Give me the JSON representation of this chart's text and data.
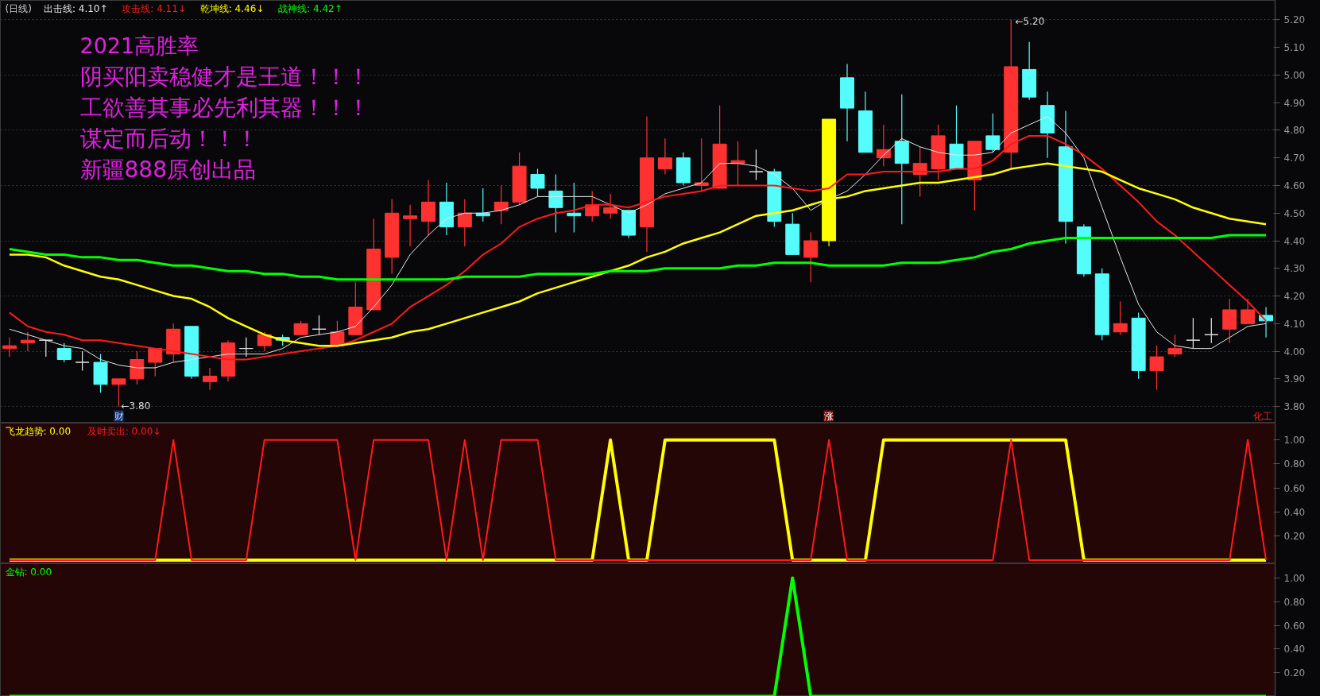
{
  "chart_data": [
    {
      "type": "candlestick",
      "title": "(日线)",
      "categories": [
        null,
        null,
        null,
        null,
        null,
        null,
        null,
        null,
        null,
        null,
        null,
        null,
        null,
        null,
        null,
        null,
        null,
        null,
        null,
        null,
        null,
        null,
        null,
        null,
        null,
        null,
        null,
        null,
        null,
        null,
        null,
        null,
        null,
        null,
        null,
        null,
        null,
        null,
        null,
        null,
        null,
        null,
        null,
        null,
        null,
        null,
        null,
        null,
        null,
        null,
        null,
        null,
        null,
        null,
        null,
        null,
        null,
        null,
        null,
        null,
        null,
        null,
        null,
        null,
        null,
        null,
        null,
        null,
        null,
        null
      ],
      "ohlc": [
        [
          4.01,
          4.05,
          3.98,
          4.02
        ],
        [
          4.03,
          4.07,
          4.0,
          4.04
        ],
        [
          4.04,
          4.04,
          3.98,
          4.04
        ],
        [
          4.01,
          4.03,
          3.96,
          3.97
        ],
        [
          3.96,
          4.0,
          3.93,
          3.96
        ],
        [
          3.96,
          3.99,
          3.85,
          3.88
        ],
        [
          3.88,
          3.9,
          3.8,
          3.9
        ],
        [
          3.9,
          4.0,
          3.88,
          3.97
        ],
        [
          3.96,
          4.01,
          3.91,
          4.01
        ],
        [
          3.99,
          4.1,
          3.96,
          4.08
        ],
        [
          4.09,
          4.09,
          3.9,
          3.91
        ],
        [
          3.89,
          3.94,
          3.86,
          3.91
        ],
        [
          3.91,
          4.04,
          3.89,
          4.03
        ],
        [
          4.01,
          4.05,
          3.98,
          4.01
        ],
        [
          4.02,
          4.07,
          4.0,
          4.06
        ],
        [
          4.05,
          4.06,
          4.02,
          4.04
        ],
        [
          4.06,
          4.11,
          4.06,
          4.1
        ],
        [
          4.08,
          4.13,
          4.06,
          4.08
        ],
        [
          4.02,
          4.11,
          4.02,
          4.07
        ],
        [
          4.06,
          4.25,
          4.06,
          4.16
        ],
        [
          4.15,
          4.48,
          4.15,
          4.37
        ],
        [
          4.34,
          4.55,
          4.28,
          4.5
        ],
        [
          4.48,
          4.53,
          4.38,
          4.49
        ],
        [
          4.47,
          4.62,
          4.42,
          4.54
        ],
        [
          4.54,
          4.61,
          4.42,
          4.45
        ],
        [
          4.45,
          4.55,
          4.38,
          4.5
        ],
        [
          4.5,
          4.59,
          4.47,
          4.49
        ],
        [
          4.51,
          4.6,
          4.46,
          4.54
        ],
        [
          4.54,
          4.72,
          4.53,
          4.67
        ],
        [
          4.64,
          4.66,
          4.56,
          4.59
        ],
        [
          4.58,
          4.64,
          4.43,
          4.52
        ],
        [
          4.5,
          4.61,
          4.43,
          4.49
        ],
        [
          4.49,
          4.58,
          4.47,
          4.53
        ],
        [
          4.5,
          4.57,
          4.48,
          4.52
        ],
        [
          4.51,
          4.51,
          4.41,
          4.42
        ],
        [
          4.45,
          4.85,
          4.36,
          4.7
        ],
        [
          4.66,
          4.77,
          4.64,
          4.7
        ],
        [
          4.7,
          4.72,
          4.6,
          4.61
        ],
        [
          4.6,
          4.77,
          4.58,
          4.61
        ],
        [
          4.59,
          4.89,
          4.59,
          4.75
        ],
        [
          4.68,
          4.76,
          4.6,
          4.69
        ],
        [
          4.65,
          4.73,
          4.62,
          4.65
        ],
        [
          4.65,
          4.66,
          4.45,
          4.47
        ],
        [
          4.46,
          4.5,
          4.35,
          4.35
        ],
        [
          4.34,
          4.43,
          4.25,
          4.4
        ],
        [
          4.4,
          4.84,
          4.38,
          4.84
        ],
        [
          4.99,
          5.04,
          4.76,
          4.88
        ],
        [
          4.87,
          4.94,
          4.72,
          4.72
        ],
        [
          4.7,
          4.82,
          4.67,
          4.73
        ],
        [
          4.76,
          4.93,
          4.46,
          4.68
        ],
        [
          4.64,
          4.74,
          4.56,
          4.68
        ],
        [
          4.66,
          4.82,
          4.62,
          4.78
        ],
        [
          4.75,
          4.89,
          4.66,
          4.66
        ],
        [
          4.62,
          4.76,
          4.51,
          4.76
        ],
        [
          4.78,
          4.86,
          4.72,
          4.73
        ],
        [
          4.72,
          5.2,
          4.66,
          5.03
        ],
        [
          5.02,
          5.12,
          4.91,
          4.92
        ],
        [
          4.89,
          4.94,
          4.7,
          4.79
        ],
        [
          4.74,
          4.87,
          4.39,
          4.47
        ],
        [
          4.45,
          4.46,
          4.27,
          4.28
        ],
        [
          4.28,
          4.3,
          4.04,
          4.06
        ],
        [
          4.07,
          4.18,
          4.06,
          4.1
        ],
        [
          4.12,
          4.14,
          3.9,
          3.93
        ],
        [
          3.93,
          4.02,
          3.86,
          3.98
        ],
        [
          3.99,
          4.06,
          3.98,
          4.01
        ],
        [
          4.04,
          4.12,
          4.01,
          4.04
        ],
        [
          4.06,
          4.12,
          4.03,
          4.06
        ],
        [
          4.08,
          4.19,
          4.03,
          4.15
        ],
        [
          4.1,
          4.19,
          4.1,
          4.15
        ],
        [
          4.13,
          4.16,
          4.05,
          4.11
        ]
      ],
      "colors": [
        "#ff3232",
        "#ff3232",
        "#e6e6e6",
        "#54fcfc",
        "#e6e6e6",
        "#54fcfc",
        "#ff3232",
        "#ff3232",
        "#ff3232",
        "#ff3232",
        "#54fcfc",
        "#ff3232",
        "#ff3232",
        "#e6e6e6",
        "#ff3232",
        "#54fcfc",
        "#ff3232",
        "#e6e6e6",
        "#ff3232",
        "#ff3232",
        "#ff3232",
        "#ff3232",
        "#ff3232",
        "#ff3232",
        "#54fcfc",
        "#ff3232",
        "#54fcfc",
        "#ff3232",
        "#ff3232",
        "#54fcfc",
        "#54fcfc",
        "#54fcfc",
        "#ff3232",
        "#ff3232",
        "#54fcfc",
        "#ff3232",
        "#ff3232",
        "#54fcfc",
        "#ff3232",
        "#ff3232",
        "#ff3232",
        "#e6e6e6",
        "#54fcfc",
        "#54fcfc",
        "#ff3232",
        "#ffff00",
        "#54fcfc",
        "#54fcfc",
        "#ff3232",
        "#54fcfc",
        "#ff3232",
        "#ff3232",
        "#54fcfc",
        "#ff3232",
        "#54fcfc",
        "#ff3232",
        "#54fcfc",
        "#54fcfc",
        "#54fcfc",
        "#54fcfc",
        "#54fcfc",
        "#ff3232",
        "#54fcfc",
        "#ff3232",
        "#ff3232",
        "#e6e6e6",
        "#e6e6e6",
        "#ff3232",
        "#ff3232",
        "#54fcfc"
      ],
      "series": [
        {
          "name": "出击线: 4.10↑",
          "type": "line",
          "color": "#e6e6e6",
          "values": [
            4.08,
            4.06,
            4.04,
            4.02,
            4.01,
            3.97,
            3.95,
            3.94,
            3.94,
            3.96,
            3.97,
            3.98,
            3.99,
            3.99,
            3.99,
            4.01,
            4.05,
            4.06,
            4.07,
            4.09,
            4.16,
            4.24,
            4.35,
            4.42,
            4.48,
            4.5,
            4.5,
            4.51,
            4.53,
            4.56,
            4.56,
            4.56,
            4.56,
            4.53,
            4.5,
            4.53,
            4.57,
            4.59,
            4.61,
            4.68,
            4.68,
            4.67,
            4.64,
            4.59,
            4.51,
            4.55,
            4.58,
            4.64,
            4.71,
            4.77,
            4.74,
            4.72,
            4.71,
            4.71,
            4.72,
            4.79,
            4.82,
            4.85,
            4.79,
            4.7,
            4.52,
            4.34,
            4.17,
            4.07,
            4.02,
            4.01,
            4.01,
            4.05,
            4.09,
            4.1
          ]
        },
        {
          "name": "攻击线: 4.11↓",
          "type": "line",
          "color": "#ff1a1a",
          "values": [
            4.14,
            4.09,
            4.07,
            4.06,
            4.04,
            4.04,
            4.03,
            4.02,
            4.01,
            4.0,
            3.99,
            3.98,
            3.97,
            3.97,
            3.98,
            3.99,
            4.0,
            4.01,
            4.02,
            4.04,
            4.07,
            4.1,
            4.16,
            4.2,
            4.24,
            4.29,
            4.35,
            4.39,
            4.45,
            4.48,
            4.5,
            4.51,
            4.53,
            4.53,
            4.52,
            4.54,
            4.56,
            4.57,
            4.58,
            4.6,
            4.6,
            4.6,
            4.6,
            4.59,
            4.58,
            4.59,
            4.64,
            4.64,
            4.65,
            4.65,
            4.65,
            4.65,
            4.66,
            4.66,
            4.69,
            4.75,
            4.78,
            4.78,
            4.75,
            4.71,
            4.66,
            4.6,
            4.54,
            4.47,
            4.42,
            4.36,
            4.3,
            4.24,
            4.18,
            4.11
          ]
        },
        {
          "name": "乾坤线: 4.46↓",
          "type": "line",
          "color": "#ffff00",
          "values": [
            4.35,
            4.35,
            4.34,
            4.31,
            4.29,
            4.27,
            4.26,
            4.24,
            4.22,
            4.2,
            4.19,
            4.16,
            4.12,
            4.09,
            4.06,
            4.04,
            4.03,
            4.02,
            4.02,
            4.03,
            4.04,
            4.05,
            4.07,
            4.08,
            4.1,
            4.12,
            4.14,
            4.16,
            4.18,
            4.21,
            4.23,
            4.25,
            4.27,
            4.29,
            4.31,
            4.34,
            4.36,
            4.39,
            4.41,
            4.43,
            4.46,
            4.49,
            4.5,
            4.51,
            4.53,
            4.55,
            4.56,
            4.58,
            4.59,
            4.6,
            4.61,
            4.61,
            4.62,
            4.63,
            4.64,
            4.66,
            4.67,
            4.68,
            4.67,
            4.66,
            4.65,
            4.62,
            4.59,
            4.57,
            4.55,
            4.52,
            4.5,
            4.48,
            4.47,
            4.46
          ]
        },
        {
          "name": "战神线: 4.42↑",
          "type": "line",
          "color": "#00ff00",
          "values": [
            4.37,
            4.36,
            4.35,
            4.35,
            4.34,
            4.34,
            4.33,
            4.33,
            4.32,
            4.31,
            4.31,
            4.3,
            4.29,
            4.29,
            4.28,
            4.28,
            4.27,
            4.27,
            4.26,
            4.26,
            4.26,
            4.26,
            4.26,
            4.26,
            4.26,
            4.27,
            4.27,
            4.27,
            4.27,
            4.28,
            4.28,
            4.28,
            4.28,
            4.29,
            4.29,
            4.29,
            4.3,
            4.3,
            4.3,
            4.3,
            4.31,
            4.31,
            4.32,
            4.32,
            4.32,
            4.31,
            4.31,
            4.31,
            4.31,
            4.32,
            4.32,
            4.32,
            4.33,
            4.34,
            4.36,
            4.37,
            4.39,
            4.4,
            4.41,
            4.41,
            4.41,
            4.41,
            4.41,
            4.41,
            4.41,
            4.41,
            4.41,
            4.42,
            4.42,
            4.42
          ]
        }
      ],
      "ylim": [
        3.74,
        5.27
      ],
      "yticks": [
        {
          "value": 3.8,
          "label": "3.80"
        },
        {
          "value": 3.9,
          "label": "3.90"
        },
        {
          "value": 4.0,
          "label": "4.00"
        },
        {
          "value": 4.1,
          "label": "4.10"
        },
        {
          "value": 4.2,
          "label": "4.20"
        },
        {
          "value": 4.3,
          "label": "4.30"
        },
        {
          "value": 4.4,
          "label": "4.40"
        },
        {
          "value": 4.5,
          "label": "4.50"
        },
        {
          "value": 4.6,
          "label": "4.60"
        },
        {
          "value": 4.7,
          "label": "4.70"
        },
        {
          "value": 4.8,
          "label": "4.80"
        },
        {
          "value": 4.9,
          "label": "4.90"
        },
        {
          "value": 5.0,
          "label": "5.00"
        },
        {
          "value": 5.1,
          "label": "5.10"
        },
        {
          "value": 5.2,
          "label": "5.20"
        }
      ],
      "grid": "y",
      "tick_labels": "y",
      "annotations": [
        "2021高胜率",
        "阴买阳卖稳健才是王道！！！",
        "工欲善其事必先利其器！！！",
        "谋定而后动！！！",
        "新疆888原创出品",
        "←3.80",
        "←5.20",
        "财",
        "涨",
        "化工"
      ]
    },
    {
      "type": "line",
      "categories": [
        null,
        null,
        null,
        null,
        null,
        null,
        null,
        null,
        null,
        null,
        null,
        null,
        null,
        null,
        null,
        null,
        null,
        null,
        null,
        null,
        null,
        null,
        null,
        null,
        null,
        null,
        null,
        null,
        null,
        null,
        null,
        null,
        null,
        null,
        null,
        null,
        null,
        null,
        null,
        null,
        null,
        null,
        null,
        null,
        null,
        null,
        null,
        null,
        null,
        null,
        null,
        null,
        null,
        null,
        null,
        null,
        null,
        null,
        null,
        null,
        null,
        null,
        null,
        null,
        null,
        null,
        null,
        null,
        null,
        null
      ],
      "series": [
        {
          "name": "飞龙趋势: 0.00",
          "color": "#ffff00",
          "values": [
            0,
            0,
            0,
            0,
            0,
            0,
            0,
            0,
            0,
            0,
            0,
            0,
            0,
            0,
            0,
            0,
            0,
            0,
            0,
            0,
            0,
            0,
            0,
            0,
            0,
            0,
            0,
            0,
            0,
            0,
            0,
            0,
            0,
            1,
            0,
            0,
            1,
            1,
            1,
            1,
            1,
            1,
            1,
            0,
            0,
            0,
            0,
            0,
            1,
            1,
            1,
            1,
            1,
            1,
            1,
            1,
            1,
            1,
            1,
            0,
            0,
            0,
            0,
            0,
            0,
            0,
            0,
            0,
            0,
            0
          ]
        },
        {
          "name": "及时卖出: 0.00↓",
          "color": "#ff1a1a",
          "values": [
            0,
            0,
            0,
            0,
            0,
            0,
            0,
            0,
            0,
            1,
            0,
            0,
            0,
            0,
            1,
            1,
            1,
            1,
            1,
            0,
            1,
            1,
            1,
            1,
            0,
            1,
            0,
            1,
            1,
            1,
            0,
            0,
            0,
            0,
            0,
            0,
            0,
            0,
            0,
            0,
            0,
            0,
            0,
            0,
            0,
            1,
            0,
            0,
            0,
            0,
            0,
            0,
            0,
            0,
            0,
            1,
            0,
            0,
            0,
            0,
            0,
            0,
            0,
            0,
            0,
            0,
            0,
            0,
            1,
            0
          ]
        }
      ],
      "ylim": [
        -0.03,
        1.14
      ],
      "yticks": [
        {
          "value": 0.2,
          "label": "0.20"
        },
        {
          "value": 0.4,
          "label": "0.40"
        },
        {
          "value": 0.6,
          "label": "0.60"
        },
        {
          "value": 0.8,
          "label": "0.80"
        },
        {
          "value": 1.0,
          "label": "1.00"
        }
      ],
      "tick_labels": "y"
    },
    {
      "type": "line",
      "categories": [
        null,
        null,
        null,
        null,
        null,
        null,
        null,
        null,
        null,
        null,
        null,
        null,
        null,
        null,
        null,
        null,
        null,
        null,
        null,
        null,
        null,
        null,
        null,
        null,
        null,
        null,
        null,
        null,
        null,
        null,
        null,
        null,
        null,
        null,
        null,
        null,
        null,
        null,
        null,
        null,
        null,
        null,
        null,
        null,
        null,
        null,
        null,
        null,
        null,
        null,
        null,
        null,
        null,
        null,
        null,
        null,
        null,
        null,
        null,
        null,
        null,
        null,
        null,
        null,
        null,
        null,
        null,
        null,
        null,
        null
      ],
      "series": [
        {
          "name": "金钻: 0.00",
          "color": "#00ff00",
          "values": [
            0,
            0,
            0,
            0,
            0,
            0,
            0,
            0,
            0,
            0,
            0,
            0,
            0,
            0,
            0,
            0,
            0,
            0,
            0,
            0,
            0,
            0,
            0,
            0,
            0,
            0,
            0,
            0,
            0,
            0,
            0,
            0,
            0,
            0,
            0,
            0,
            0,
            0,
            0,
            0,
            0,
            0,
            0,
            1,
            0,
            0,
            0,
            0,
            0,
            0,
            0,
            0,
            0,
            0,
            0,
            0,
            0,
            0,
            0,
            0,
            0,
            0,
            0,
            0,
            0,
            0,
            0,
            0,
            0,
            0
          ]
        }
      ],
      "ylim": [
        0,
        1.12
      ],
      "yticks": [
        {
          "value": 0.2,
          "label": "0.20"
        },
        {
          "value": 0.4,
          "label": "0.40"
        },
        {
          "value": 0.6,
          "label": "0.60"
        },
        {
          "value": 0.8,
          "label": "0.80"
        },
        {
          "value": 1.0,
          "label": "1.00"
        }
      ],
      "tick_labels": "y"
    }
  ]
}
